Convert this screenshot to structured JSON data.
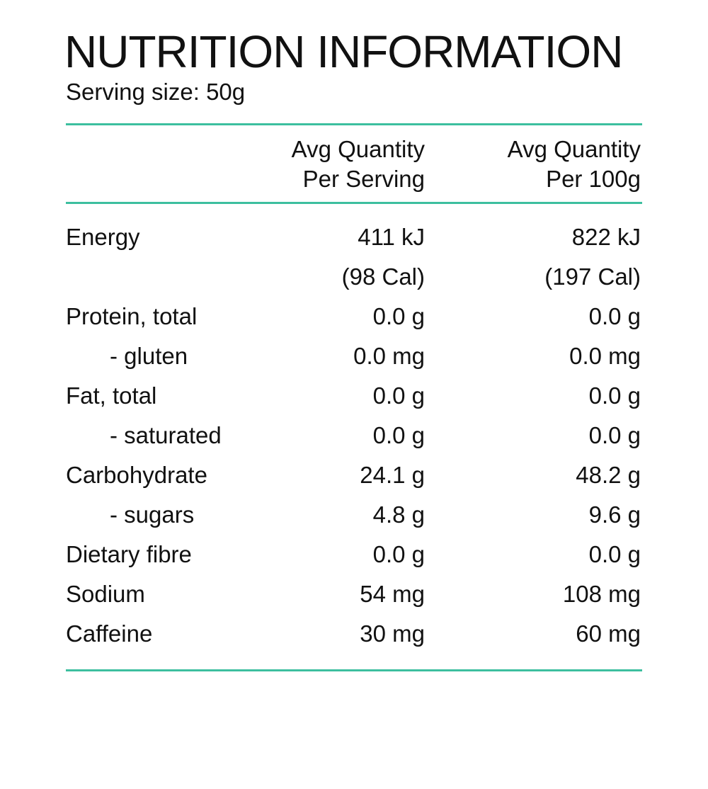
{
  "title": "NUTRITION INFORMATION",
  "serving_size": "Serving size: 50g",
  "accent_color": "#3dbf9f",
  "columns": [
    {
      "line1": "Avg Quantity",
      "line2": "Per Serving"
    },
    {
      "line1": "Avg Quantity",
      "line2": "Per 100g"
    }
  ],
  "rows": [
    {
      "label": "Energy",
      "sub": false,
      "per_serving": "411 kJ",
      "per_100g": "822 kJ"
    },
    {
      "label": "",
      "sub": false,
      "per_serving": "(98 Cal)",
      "per_100g": "(197 Cal)"
    },
    {
      "label": "Protein, total",
      "sub": false,
      "per_serving": "0.0 g",
      "per_100g": "0.0 g"
    },
    {
      "label": "- gluten",
      "sub": true,
      "per_serving": "0.0 mg",
      "per_100g": "0.0 mg"
    },
    {
      "label": "Fat, total",
      "sub": false,
      "per_serving": "0.0 g",
      "per_100g": "0.0 g"
    },
    {
      "label": "- saturated",
      "sub": true,
      "per_serving": "0.0 g",
      "per_100g": "0.0 g"
    },
    {
      "label": "Carbohydrate",
      "sub": false,
      "per_serving": "24.1 g",
      "per_100g": "48.2 g"
    },
    {
      "label": "- sugars",
      "sub": true,
      "per_serving": "4.8 g",
      "per_100g": "9.6 g"
    },
    {
      "label": "Dietary fibre",
      "sub": false,
      "per_serving": "0.0 g",
      "per_100g": "0.0 g"
    },
    {
      "label": "Sodium",
      "sub": false,
      "per_serving": "54 mg",
      "per_100g": "108 mg"
    },
    {
      "label": "Caffeine",
      "sub": false,
      "per_serving": "30 mg",
      "per_100g": "60 mg"
    }
  ]
}
